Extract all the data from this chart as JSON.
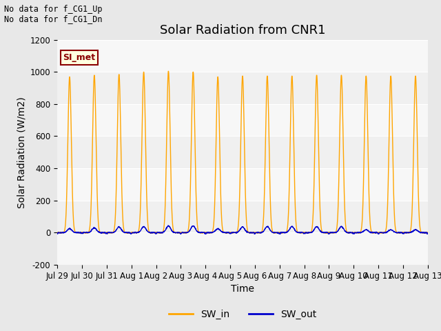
{
  "title": "Solar Radiation from CNR1",
  "xlabel": "Time",
  "ylabel": "Solar Radiation (W/m2)",
  "ylim": [
    -200,
    1200
  ],
  "yticks": [
    -200,
    0,
    200,
    400,
    600,
    800,
    1000,
    1200
  ],
  "x_tick_labels": [
    "Jul 29",
    "Jul 30",
    "Jul 31",
    "Aug 1",
    "Aug 2",
    "Aug 3",
    "Aug 4",
    "Aug 5",
    "Aug 6",
    "Aug 7",
    "Aug 8",
    "Aug 9",
    "Aug 10",
    "Aug 11",
    "Aug 12",
    "Aug 13"
  ],
  "sw_in_color": "#FFA500",
  "sw_out_color": "#0000CC",
  "background_color": "#E8E8E8",
  "plot_bg_color": "#F0F0F0",
  "legend_label_in": "SW_in",
  "legend_label_out": "SW_out",
  "annotation1": "No data for f_CG1_Up",
  "annotation2": "No data for f_CG1_Dn",
  "si_met_label": "SI_met",
  "n_days": 15,
  "peak_sw_in": [
    970,
    980,
    985,
    1000,
    1005,
    1000,
    970,
    975,
    975,
    975,
    980,
    980,
    975,
    975,
    975
  ],
  "peak_sw_out": [
    25,
    30,
    35,
    38,
    42,
    42,
    25,
    35,
    38,
    38,
    38,
    38,
    18,
    18,
    18
  ],
  "title_fontsize": 13,
  "label_fontsize": 10,
  "tick_fontsize": 8.5,
  "annot_fontsize": 8.5,
  "legend_fontsize": 10
}
